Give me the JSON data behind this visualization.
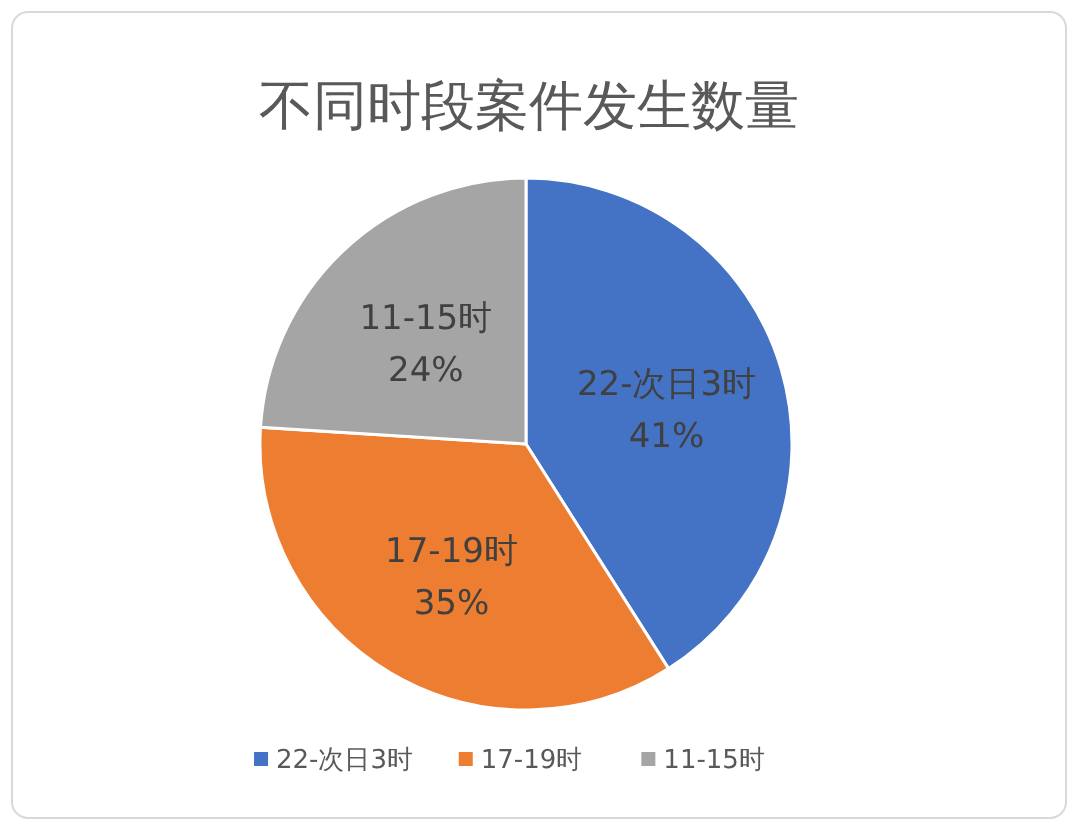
{
  "chart_data": {
    "type": "pie",
    "title": "不同时段案件发生数量",
    "categories": [
      "22-次日3时",
      "17-19时",
      "11-15时"
    ],
    "values": [
      41,
      35,
      24
    ],
    "colors": [
      "#4472c4",
      "#ed7d31",
      "#a5a5a5"
    ],
    "value_labels": [
      "41%",
      "35%",
      "24%"
    ],
    "legend": "bottom"
  }
}
